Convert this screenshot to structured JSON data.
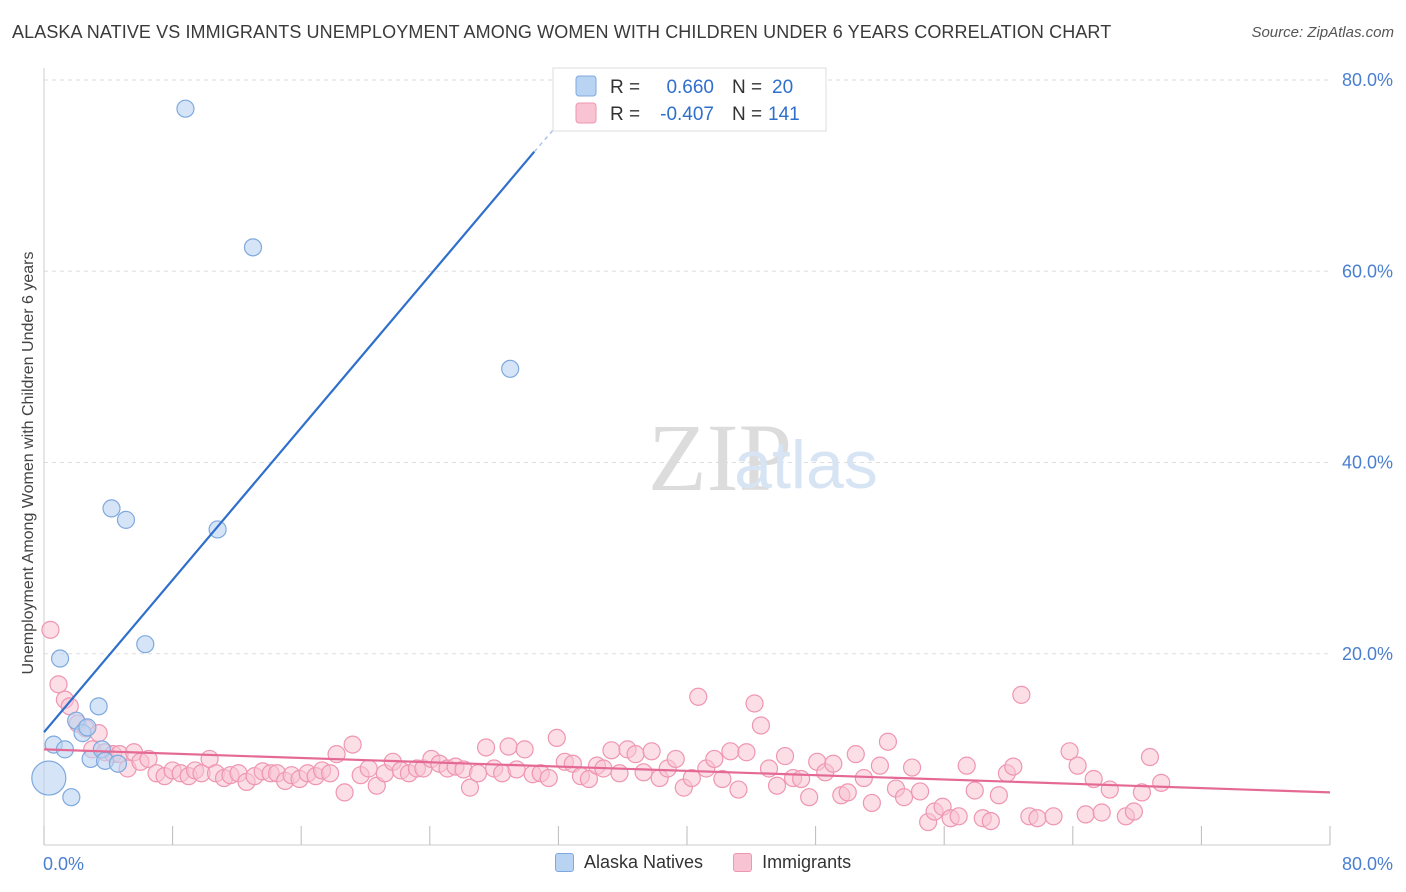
{
  "title": "ALASKA NATIVE VS IMMIGRANTS UNEMPLOYMENT AMONG WOMEN WITH CHILDREN UNDER 6 YEARS CORRELATION CHART",
  "source": "Source: ZipAtlas.com",
  "watermark": {
    "zip": "ZIP",
    "atlas": "atlas"
  },
  "colors": {
    "blue_fill": "#b9d3f2",
    "blue_stroke": "#7fa9de",
    "blue_line": "#2f6fcc",
    "pink_fill": "#f8c3d2",
    "pink_stroke": "#ef96b2",
    "pink_line": "#e46a95",
    "axis_text": "#4a7fd0",
    "grid": "#dddddd"
  },
  "legend": {
    "series": [
      {
        "r_label": "R =",
        "r_value": "0.660",
        "n_label": "N =",
        "n_value": "20"
      },
      {
        "r_label": "R =",
        "r_value": "-0.407",
        "n_label": "N =",
        "n_value": "141"
      }
    ]
  },
  "bottom_legend": [
    "Alaska Natives",
    "Immigrants"
  ],
  "chart_data": {
    "type": "scatter",
    "title": "ALASKA NATIVE VS IMMIGRANTS UNEMPLOYMENT AMONG WOMEN WITH CHILDREN UNDER 6 YEARS CORRELATION CHART",
    "xlabel": "",
    "ylabel": "Unemployment Among Women with Children Under 6 years",
    "xlim": [
      0,
      80
    ],
    "ylim": [
      0,
      80
    ],
    "x_tick_labels": [
      "0.0%",
      "80.0%"
    ],
    "y_tick_labels": [
      "20.0%",
      "40.0%",
      "60.0%",
      "80.0%"
    ],
    "y_ticks": [
      20,
      40,
      60,
      80
    ],
    "series": [
      {
        "name": "Alaska Natives",
        "points": [
          [
            0.3,
            7.0
          ],
          [
            0.6,
            10.5
          ],
          [
            1.0,
            19.5
          ],
          [
            1.3,
            10.0
          ],
          [
            1.7,
            5.0
          ],
          [
            2.0,
            13.0
          ],
          [
            2.4,
            11.7
          ],
          [
            2.7,
            12.3
          ],
          [
            2.9,
            9.0
          ],
          [
            3.4,
            14.5
          ],
          [
            3.6,
            10.0
          ],
          [
            3.8,
            8.8
          ],
          [
            4.2,
            35.2
          ],
          [
            4.6,
            8.5
          ],
          [
            5.1,
            34.0
          ],
          [
            6.3,
            21.0
          ],
          [
            8.8,
            77.0
          ],
          [
            10.8,
            33.0
          ],
          [
            13.0,
            62.5
          ],
          [
            29.0,
            49.8
          ]
        ],
        "trend": {
          "x": [
            0,
            30.5
          ],
          "y": [
            11.8,
            72.5
          ],
          "dashed_to": [
            33.5,
            78.3
          ]
        }
      },
      {
        "name": "Immigrants",
        "points": [
          [
            0.4,
            22.5
          ],
          [
            0.9,
            16.8
          ],
          [
            1.3,
            15.2
          ],
          [
            1.6,
            14.5
          ],
          [
            2.1,
            12.7
          ],
          [
            2.6,
            12.2
          ],
          [
            3.0,
            10.0
          ],
          [
            3.4,
            11.7
          ],
          [
            3.8,
            9.7
          ],
          [
            4.3,
            9.5
          ],
          [
            4.7,
            9.5
          ],
          [
            5.2,
            8.0
          ],
          [
            5.6,
            9.7
          ],
          [
            6.0,
            8.7
          ],
          [
            6.5,
            9.0
          ],
          [
            7.0,
            7.5
          ],
          [
            7.5,
            7.2
          ],
          [
            8.0,
            7.8
          ],
          [
            8.5,
            7.5
          ],
          [
            9.0,
            7.2
          ],
          [
            9.4,
            7.8
          ],
          [
            9.8,
            7.5
          ],
          [
            10.3,
            9.0
          ],
          [
            10.7,
            7.5
          ],
          [
            11.2,
            7.0
          ],
          [
            11.6,
            7.3
          ],
          [
            12.1,
            7.5
          ],
          [
            12.6,
            6.6
          ],
          [
            13.1,
            7.2
          ],
          [
            13.6,
            7.7
          ],
          [
            14.1,
            7.5
          ],
          [
            14.5,
            7.5
          ],
          [
            15.0,
            6.7
          ],
          [
            15.4,
            7.3
          ],
          [
            15.9,
            6.9
          ],
          [
            16.4,
            7.5
          ],
          [
            16.9,
            7.2
          ],
          [
            17.3,
            7.8
          ],
          [
            17.8,
            7.5
          ],
          [
            18.2,
            9.5
          ],
          [
            18.7,
            5.5
          ],
          [
            19.2,
            10.5
          ],
          [
            19.7,
            7.3
          ],
          [
            20.2,
            8.0
          ],
          [
            20.7,
            6.2
          ],
          [
            21.2,
            7.5
          ],
          [
            21.7,
            8.7
          ],
          [
            22.2,
            7.8
          ],
          [
            22.7,
            7.5
          ],
          [
            23.2,
            8.0
          ],
          [
            23.6,
            8.0
          ],
          [
            24.1,
            9.0
          ],
          [
            24.6,
            8.5
          ],
          [
            25.1,
            8.0
          ],
          [
            25.6,
            8.2
          ],
          [
            26.1,
            7.9
          ],
          [
            26.5,
            6.0
          ],
          [
            27.0,
            7.5
          ],
          [
            27.5,
            10.2
          ],
          [
            28.0,
            8.0
          ],
          [
            28.5,
            7.5
          ],
          [
            28.9,
            10.3
          ],
          [
            29.4,
            7.9
          ],
          [
            29.9,
            10.0
          ],
          [
            30.4,
            7.4
          ],
          [
            30.9,
            7.5
          ],
          [
            31.4,
            7.0
          ],
          [
            31.9,
            11.2
          ],
          [
            32.4,
            8.7
          ],
          [
            32.9,
            8.5
          ],
          [
            33.4,
            7.2
          ],
          [
            33.9,
            6.9
          ],
          [
            34.4,
            8.3
          ],
          [
            34.8,
            8.0
          ],
          [
            35.3,
            9.9
          ],
          [
            35.8,
            7.5
          ],
          [
            36.3,
            10.0
          ],
          [
            36.8,
            9.5
          ],
          [
            37.3,
            7.6
          ],
          [
            37.8,
            9.8
          ],
          [
            38.3,
            7.0
          ],
          [
            38.8,
            8.0
          ],
          [
            39.3,
            9.0
          ],
          [
            39.8,
            6.0
          ],
          [
            40.3,
            7.0
          ],
          [
            40.7,
            15.5
          ],
          [
            41.2,
            8.0
          ],
          [
            41.7,
            9.0
          ],
          [
            42.2,
            6.9
          ],
          [
            42.7,
            9.8
          ],
          [
            43.2,
            5.8
          ],
          [
            43.7,
            9.7
          ],
          [
            44.2,
            14.8
          ],
          [
            44.6,
            12.5
          ],
          [
            45.1,
            8.0
          ],
          [
            45.6,
            6.2
          ],
          [
            46.1,
            9.3
          ],
          [
            46.6,
            7.0
          ],
          [
            47.1,
            6.9
          ],
          [
            47.6,
            5.0
          ],
          [
            48.1,
            8.7
          ],
          [
            48.6,
            7.6
          ],
          [
            49.1,
            8.5
          ],
          [
            49.6,
            5.2
          ],
          [
            50.0,
            5.5
          ],
          [
            50.5,
            9.5
          ],
          [
            51.0,
            7.0
          ],
          [
            51.5,
            4.4
          ],
          [
            52.0,
            8.3
          ],
          [
            52.5,
            10.8
          ],
          [
            53.0,
            5.9
          ],
          [
            53.5,
            5.0
          ],
          [
            54.0,
            8.1
          ],
          [
            54.5,
            5.6
          ],
          [
            55.0,
            2.4
          ],
          [
            55.4,
            3.5
          ],
          [
            55.9,
            4.0
          ],
          [
            56.4,
            2.8
          ],
          [
            56.9,
            3.0
          ],
          [
            57.4,
            8.3
          ],
          [
            57.9,
            5.7
          ],
          [
            58.4,
            2.8
          ],
          [
            58.9,
            2.5
          ],
          [
            59.4,
            5.2
          ],
          [
            59.9,
            7.5
          ],
          [
            60.3,
            8.2
          ],
          [
            60.8,
            15.7
          ],
          [
            61.3,
            3.0
          ],
          [
            61.8,
            2.8
          ],
          [
            62.8,
            3.0
          ],
          [
            63.8,
            9.8
          ],
          [
            64.3,
            8.3
          ],
          [
            64.8,
            3.2
          ],
          [
            65.3,
            6.9
          ],
          [
            65.8,
            3.4
          ],
          [
            66.3,
            5.8
          ],
          [
            67.3,
            3.0
          ],
          [
            67.8,
            3.5
          ],
          [
            68.3,
            5.5
          ],
          [
            68.8,
            9.2
          ],
          [
            69.5,
            6.5
          ]
        ],
        "trend": {
          "x": [
            0,
            80
          ],
          "y": [
            10.0,
            5.5
          ]
        }
      }
    ]
  }
}
